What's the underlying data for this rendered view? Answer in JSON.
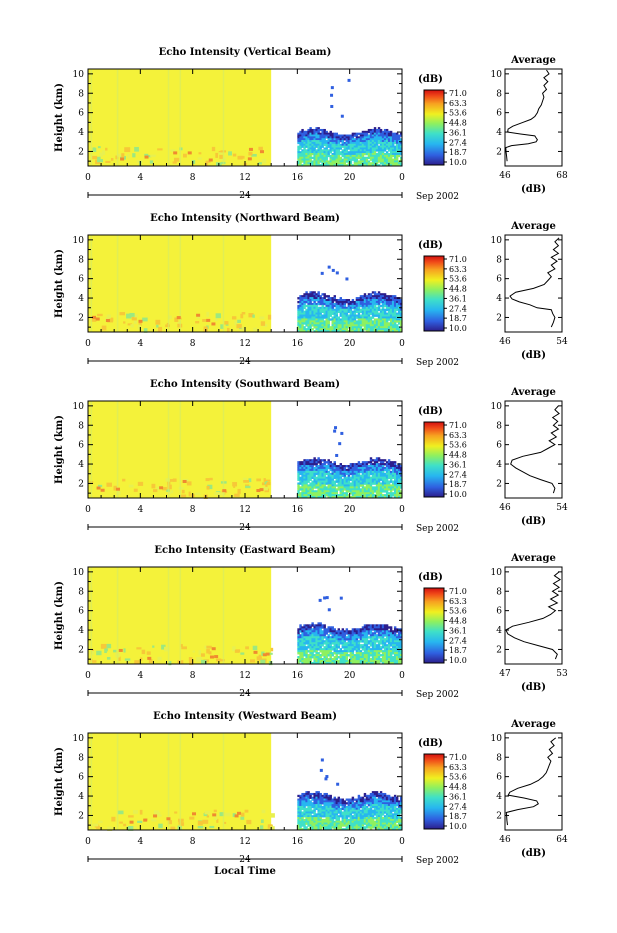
{
  "xlabel_global": "Local Time",
  "chart_data": [
    {
      "type": "heatmap",
      "title": "Echo Intensity (Vertical Beam)",
      "ylabel": "Height (km)",
      "xticks": [
        "0",
        "4",
        "8",
        "12",
        "16",
        "20",
        "0"
      ],
      "yticks": [
        "2",
        "4",
        "6",
        "8",
        "10"
      ],
      "xlim": [
        0,
        24
      ],
      "ylim": [
        0.5,
        10.5
      ],
      "date_center": "24",
      "date_right": "Sep 2002",
      "colorbar": {
        "unit": "(dB)",
        "ticks": [
          "71.0",
          "63.3",
          "53.6",
          "44.8",
          "36.1",
          "27.4",
          "18.7",
          "10.0"
        ]
      },
      "heatmap": {
        "day_end_hour": 14,
        "night_start_hour": 16,
        "echo_top_km": 4.3
      },
      "profile": {
        "title": "Average",
        "xlabel": "(dB)",
        "xticks": [
          "46",
          "68"
        ],
        "yticks": [
          "2",
          "4",
          "6",
          "8",
          "10"
        ],
        "points": [
          [
            46.8,
            1.0
          ],
          [
            46.6,
            1.5
          ],
          [
            46.4,
            2.0
          ],
          [
            46.3,
            2.4
          ],
          [
            48.5,
            2.6
          ],
          [
            55,
            2.8
          ],
          [
            58,
            3.0
          ],
          [
            58.5,
            3.2
          ],
          [
            58,
            3.4
          ],
          [
            57.5,
            3.6
          ],
          [
            52,
            3.8
          ],
          [
            47,
            4.0
          ],
          [
            47.2,
            4.3
          ],
          [
            49,
            4.6
          ],
          [
            53,
            5.0
          ],
          [
            56,
            5.3
          ],
          [
            57.5,
            5.6
          ],
          [
            58.5,
            6.0
          ],
          [
            59,
            6.4
          ],
          [
            60,
            6.8
          ],
          [
            60.5,
            7.2
          ],
          [
            61,
            7.6
          ],
          [
            60.5,
            8.0
          ],
          [
            62,
            8.4
          ],
          [
            61,
            8.8
          ],
          [
            62.5,
            9.2
          ],
          [
            61,
            9.6
          ],
          [
            63,
            10.0
          ],
          [
            62,
            10.4
          ]
        ]
      }
    },
    {
      "type": "heatmap",
      "title": "Echo Intensity (Northward Beam)",
      "ylabel": "Height (km)",
      "xticks": [
        "0",
        "4",
        "8",
        "12",
        "16",
        "20",
        "0"
      ],
      "yticks": [
        "2",
        "4",
        "6",
        "8",
        "10"
      ],
      "xlim": [
        0,
        24
      ],
      "ylim": [
        0.5,
        10.5
      ],
      "date_center": "24",
      "date_right": "Sep 2002",
      "colorbar": {
        "unit": "(dB)",
        "ticks": [
          "71.0",
          "63.3",
          "53.6",
          "44.8",
          "36.1",
          "27.4",
          "18.7",
          "10.0"
        ]
      },
      "heatmap": {
        "day_end_hour": 14,
        "night_start_hour": 16,
        "echo_top_km": 4.5
      },
      "profile": {
        "title": "Average",
        "xlabel": "(dB)",
        "xticks": [
          "46",
          "54"
        ],
        "yticks": [
          "2",
          "4",
          "6",
          "8",
          "10"
        ],
        "points": [
          [
            52.5,
            1.0
          ],
          [
            52.8,
            1.5
          ],
          [
            53,
            2.0
          ],
          [
            52.7,
            2.4
          ],
          [
            52.5,
            2.8
          ],
          [
            50.5,
            3.0
          ],
          [
            49.5,
            3.3
          ],
          [
            48,
            3.6
          ],
          [
            47,
            3.9
          ],
          [
            46.7,
            4.2
          ],
          [
            47.5,
            4.6
          ],
          [
            50,
            5.0
          ],
          [
            51.5,
            5.4
          ],
          [
            52,
            5.8
          ],
          [
            52.5,
            6.2
          ],
          [
            52,
            6.6
          ],
          [
            53,
            7.0
          ],
          [
            52.5,
            7.4
          ],
          [
            53.3,
            7.8
          ],
          [
            52.5,
            8.2
          ],
          [
            53.5,
            8.6
          ],
          [
            52.8,
            9.0
          ],
          [
            53.5,
            9.4
          ],
          [
            53,
            9.8
          ],
          [
            53.6,
            10.2
          ]
        ]
      }
    },
    {
      "type": "heatmap",
      "title": "Echo Intensity (Southward Beam)",
      "ylabel": "Height (km)",
      "xticks": [
        "0",
        "4",
        "8",
        "12",
        "16",
        "20",
        "0"
      ],
      "yticks": [
        "2",
        "4",
        "6",
        "8",
        "10"
      ],
      "xlim": [
        0,
        24
      ],
      "ylim": [
        0.5,
        10.5
      ],
      "date_center": "24",
      "date_right": "Sep 2002",
      "colorbar": {
        "unit": "(dB)",
        "ticks": [
          "71.0",
          "63.3",
          "53.6",
          "44.8",
          "36.1",
          "27.4",
          "18.7",
          "10.0"
        ]
      },
      "heatmap": {
        "day_end_hour": 14,
        "night_start_hour": 16,
        "echo_top_km": 4.5
      },
      "profile": {
        "title": "Average",
        "xlabel": "(dB)",
        "xticks": [
          "46",
          "54"
        ],
        "yticks": [
          "2",
          "4",
          "6",
          "8",
          "10"
        ],
        "points": [
          [
            52.8,
            1.0
          ],
          [
            53,
            1.5
          ],
          [
            52.6,
            2.0
          ],
          [
            51,
            2.4
          ],
          [
            49.5,
            2.8
          ],
          [
            48.5,
            3.2
          ],
          [
            47.5,
            3.6
          ],
          [
            46.8,
            4.0
          ],
          [
            47,
            4.4
          ],
          [
            48.5,
            4.8
          ],
          [
            51,
            5.2
          ],
          [
            52,
            5.6
          ],
          [
            53,
            6.0
          ],
          [
            52.2,
            6.4
          ],
          [
            53.2,
            6.8
          ],
          [
            52.5,
            7.2
          ],
          [
            53.5,
            7.6
          ],
          [
            52.8,
            8.0
          ],
          [
            53.4,
            8.4
          ],
          [
            52.7,
            8.8
          ],
          [
            53.6,
            9.2
          ],
          [
            53,
            9.6
          ],
          [
            53.5,
            10.0
          ]
        ]
      }
    },
    {
      "type": "heatmap",
      "title": "Echo Intensity (Eastward Beam)",
      "ylabel": "Height (km)",
      "xticks": [
        "0",
        "4",
        "8",
        "12",
        "16",
        "20",
        "0"
      ],
      "yticks": [
        "2",
        "4",
        "6",
        "8",
        "10"
      ],
      "xlim": [
        0,
        24
      ],
      "ylim": [
        0.5,
        10.5
      ],
      "date_center": "24",
      "date_right": "Sep 2002",
      "colorbar": {
        "unit": "(dB)",
        "ticks": [
          "71.0",
          "63.3",
          "53.6",
          "44.8",
          "36.1",
          "27.4",
          "18.7",
          "10.0"
        ]
      },
      "heatmap": {
        "day_end_hour": 14,
        "night_start_hour": 16,
        "echo_top_km": 4.6
      },
      "profile": {
        "title": "Average",
        "xlabel": "(dB)",
        "xticks": [
          "47",
          "53"
        ],
        "yticks": [
          "2",
          "4",
          "6",
          "8",
          "10"
        ],
        "points": [
          [
            52.3,
            1.0
          ],
          [
            52.5,
            1.5
          ],
          [
            52,
            2.0
          ],
          [
            50.5,
            2.4
          ],
          [
            49,
            2.8
          ],
          [
            48,
            3.2
          ],
          [
            47.3,
            3.6
          ],
          [
            47.1,
            4.0
          ],
          [
            47.8,
            4.4
          ],
          [
            49.5,
            4.8
          ],
          [
            51,
            5.2
          ],
          [
            51.8,
            5.6
          ],
          [
            52.3,
            6.0
          ],
          [
            51.6,
            6.4
          ],
          [
            52.5,
            6.8
          ],
          [
            51.8,
            7.2
          ],
          [
            52.6,
            7.6
          ],
          [
            52,
            8.0
          ],
          [
            52.7,
            8.4
          ],
          [
            52.1,
            8.8
          ],
          [
            52.8,
            9.2
          ],
          [
            52.2,
            9.6
          ],
          [
            52.7,
            10.0
          ]
        ]
      }
    },
    {
      "type": "heatmap",
      "title": "Echo Intensity (Westward Beam)",
      "ylabel": "Height (km)",
      "xticks": [
        "0",
        "4",
        "8",
        "12",
        "16",
        "20",
        "0"
      ],
      "yticks": [
        "2",
        "4",
        "6",
        "8",
        "10"
      ],
      "xlim": [
        0,
        24
      ],
      "ylim": [
        0.5,
        10.5
      ],
      "date_center": "24",
      "date_right": "Sep 2002",
      "colorbar": {
        "unit": "(dB)",
        "ticks": [
          "71.0",
          "63.3",
          "53.6",
          "44.8",
          "36.1",
          "27.4",
          "18.7",
          "10.0"
        ]
      },
      "heatmap": {
        "day_end_hour": 14,
        "night_start_hour": 16,
        "echo_top_km": 4.3
      },
      "profile": {
        "title": "Average",
        "xlabel": "(dB)",
        "xticks": [
          "46",
          "64"
        ],
        "yticks": [
          "2",
          "4",
          "6",
          "8",
          "10"
        ],
        "points": [
          [
            46.8,
            1.0
          ],
          [
            46.6,
            1.5
          ],
          [
            46.5,
            2.0
          ],
          [
            46.4,
            2.3
          ],
          [
            50,
            2.6
          ],
          [
            55,
            2.9
          ],
          [
            56.5,
            3.2
          ],
          [
            56,
            3.5
          ],
          [
            52,
            3.8
          ],
          [
            47,
            4.1
          ],
          [
            47.5,
            4.4
          ],
          [
            50,
            4.8
          ],
          [
            54,
            5.2
          ],
          [
            56.5,
            5.6
          ],
          [
            58,
            6.0
          ],
          [
            59,
            6.4
          ],
          [
            59.5,
            6.8
          ],
          [
            60,
            7.2
          ],
          [
            60.5,
            7.6
          ],
          [
            59.5,
            8.0
          ],
          [
            61,
            8.4
          ],
          [
            60,
            8.8
          ],
          [
            61.5,
            9.2
          ],
          [
            60.5,
            9.6
          ],
          [
            62,
            10.0
          ]
        ]
      }
    }
  ]
}
